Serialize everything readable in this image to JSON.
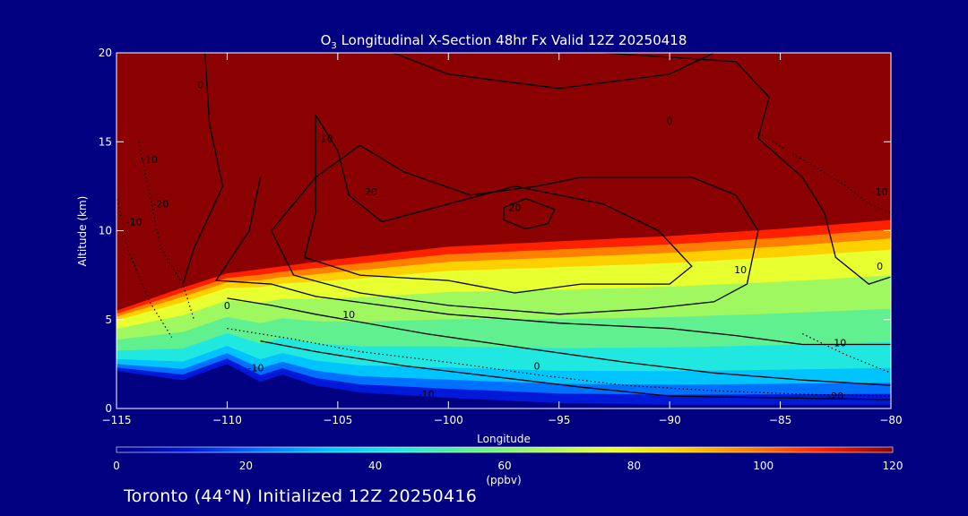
{
  "chart_data": {
    "type": "heatmap",
    "title_prefix": "O",
    "title_subscript": "3",
    "title_rest": " Longitudinal X-Section 48hr  Fx Valid 12Z 20250418",
    "xlabel": "Longitude",
    "ylabel": "Altitude (km)",
    "xlim": [
      -115,
      -80
    ],
    "ylim": [
      0,
      20
    ],
    "x_ticks": [
      -115,
      -110,
      -105,
      -100,
      -95,
      -90,
      -85,
      -80
    ],
    "x_tick_labels": [
      "−115",
      "−110",
      "−105",
      "−100",
      "−95",
      "−90",
      "−85",
      "−80"
    ],
    "y_ticks": [
      0,
      5,
      10,
      15,
      20
    ],
    "y_tick_labels": [
      "0",
      "5",
      "10",
      "15",
      "20"
    ],
    "colorbar": {
      "label": "(ppbv)",
      "range": [
        0,
        120
      ],
      "ticks": [
        0,
        20,
        40,
        60,
        80,
        100,
        120
      ],
      "tick_labels": [
        "0",
        "20",
        "40",
        "60",
        "80",
        "100",
        "120"
      ],
      "colors": [
        "#00008c",
        "#0018d8",
        "#0070ff",
        "#00c4ff",
        "#20e8e0",
        "#60f090",
        "#a0f860",
        "#e8ff30",
        "#ffd000",
        "#ff8000",
        "#ff2000",
        "#8b0000"
      ]
    },
    "tropopause_altitude_km": [
      {
        "lon": -115,
        "alt": 5.5
      },
      {
        "lon": -112,
        "alt": 6.8
      },
      {
        "lon": -110,
        "alt": 7.6
      },
      {
        "lon": -105,
        "alt": 8.4
      },
      {
        "lon": -100,
        "alt": 9.1
      },
      {
        "lon": -95,
        "alt": 9.4
      },
      {
        "lon": -90,
        "alt": 9.7
      },
      {
        "lon": -85,
        "alt": 10.1
      },
      {
        "lon": -80,
        "alt": 10.6
      }
    ],
    "terrain_altitude_km": [
      {
        "lon": -115,
        "alt": 2.1
      },
      {
        "lon": -112,
        "alt": 1.6
      },
      {
        "lon": -110,
        "alt": 2.5
      },
      {
        "lon": -108.5,
        "alt": 1.5
      },
      {
        "lon": -107.5,
        "alt": 1.9
      },
      {
        "lon": -106,
        "alt": 1.3
      },
      {
        "lon": -104,
        "alt": 0.9
      },
      {
        "lon": -100,
        "alt": 0.6
      },
      {
        "lon": -95,
        "alt": 0.3
      },
      {
        "lon": -90,
        "alt": 0.2
      },
      {
        "lon": -80,
        "alt": 0.2
      }
    ],
    "contour_labels": [
      "0",
      "10",
      "20",
      "-10",
      "-20"
    ]
  },
  "footer": {
    "text": "Toronto (44°N) Initialized 12Z 20250416"
  }
}
